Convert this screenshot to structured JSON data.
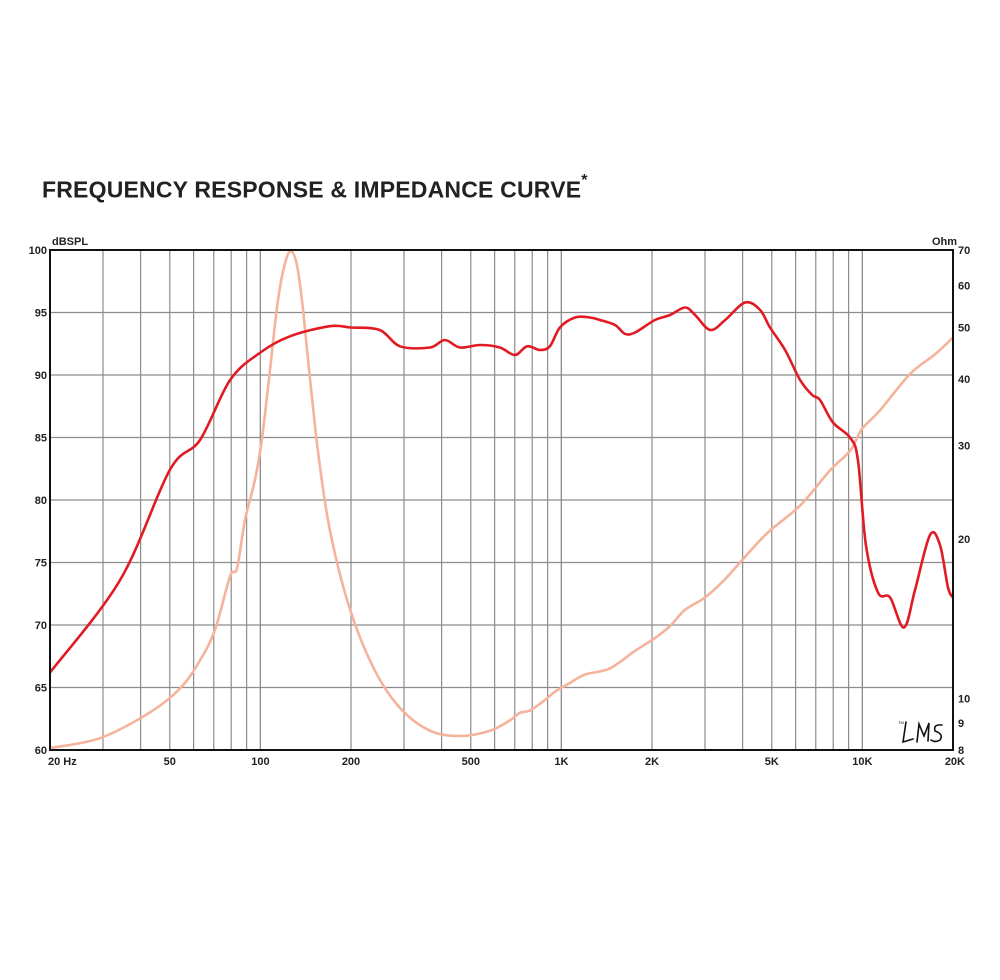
{
  "chart_data": {
    "type": "line",
    "title": "FREQUENCY RESPONSE & IMPEDANCE CURVE",
    "title_mark": "*",
    "xlabel": "Hz",
    "ylabel": "dBSPL",
    "y2label": "Ohm",
    "xscale": "log",
    "xlim": [
      20,
      20000
    ],
    "ylim": [
      60,
      100
    ],
    "y2scale": "log",
    "y2lim": [
      8,
      70
    ],
    "grid": true,
    "x_ticks": [
      "20 Hz",
      "50",
      "100",
      "200",
      "500",
      "1K",
      "2K",
      "5K",
      "10K",
      "20K"
    ],
    "x_tick_values": [
      20,
      50,
      100,
      200,
      500,
      1000,
      2000,
      5000,
      10000,
      20000
    ],
    "y_ticks": [
      100,
      95,
      90,
      85,
      80,
      75,
      70,
      65,
      60
    ],
    "y2_ticks": [
      70,
      60,
      50,
      40,
      30,
      20,
      10,
      9,
      8
    ],
    "logo": "LMS",
    "colors": {
      "spl": "#e01b24",
      "impedance": "#f4b39a",
      "grid": "#8c8c8c",
      "axis": "#111111"
    },
    "series": [
      {
        "axis": "left",
        "x": [
          20,
          34.2,
          50,
          63,
          79.3,
          100,
          125.4,
          170,
          200,
          249,
          291,
          366,
          410,
          460,
          537,
          625,
          701,
          769,
          849,
          916,
          989,
          1110,
          1245,
          1343,
          1507,
          1626,
          1757,
          2046,
          2296,
          2576,
          2781,
          3121,
          3501,
          4075,
          4572,
          4934,
          5535,
          6210,
          6811,
          7232,
          7986,
          9096,
          9665,
          10276,
          11265,
          12357,
          13748,
          14953,
          16772,
          18111,
          19245,
          20000
        ],
        "y": [
          66.2,
          73.6,
          82.4,
          84.8,
          89.6,
          91.8,
          93.1,
          93.9,
          93.8,
          93.6,
          92.3,
          92.2,
          92.8,
          92.2,
          92.4,
          92.2,
          91.6,
          92.3,
          92.0,
          92.3,
          93.8,
          94.6,
          94.6,
          94.4,
          94.0,
          93.3,
          93.4,
          94.4,
          94.8,
          95.4,
          94.8,
          93.6,
          94.4,
          95.8,
          95.2,
          93.8,
          92.0,
          89.6,
          88.4,
          88.0,
          86.2,
          85.0,
          83.2,
          76.4,
          72.6,
          72.2,
          69.8,
          72.8,
          77.2,
          76.4,
          73.0,
          72.2
        ]
      },
      {
        "axis": "right",
        "x": [
          20,
          29.3,
          43,
          54.1,
          63,
          70.7,
          79.3,
          83.6,
          88.9,
          95.9,
          101,
          107.6,
          114.3,
          120.8,
          126.4,
          132.4,
          138.6,
          146.3,
          155.3,
          170,
          198.6,
          240,
          291,
          366,
          460,
          579,
          675,
          728,
          787,
          883,
          952,
          1068,
          1198,
          1449,
          1757,
          2046,
          2296,
          2576,
          3000,
          3501,
          4744,
          6210,
          7800,
          9096,
          9974,
          11430,
          14400,
          17420,
          20000
        ],
        "y": [
          8.07,
          8.42,
          9.42,
          10.45,
          11.8,
          13.5,
          17.0,
          17.6,
          21.7,
          25.8,
          30.6,
          41.6,
          56.2,
          66.2,
          69.6,
          65.4,
          53.9,
          39.9,
          29.3,
          20.8,
          14.7,
          11.3,
          9.6,
          8.7,
          8.5,
          8.7,
          9.1,
          9.4,
          9.5,
          9.94,
          10.3,
          10.7,
          11.1,
          11.4,
          12.3,
          13.0,
          13.7,
          14.7,
          15.5,
          16.8,
          20.3,
          23.1,
          26.9,
          29.3,
          32.2,
          34.9,
          40.9,
          44.5,
          47.9
        ]
      }
    ]
  }
}
